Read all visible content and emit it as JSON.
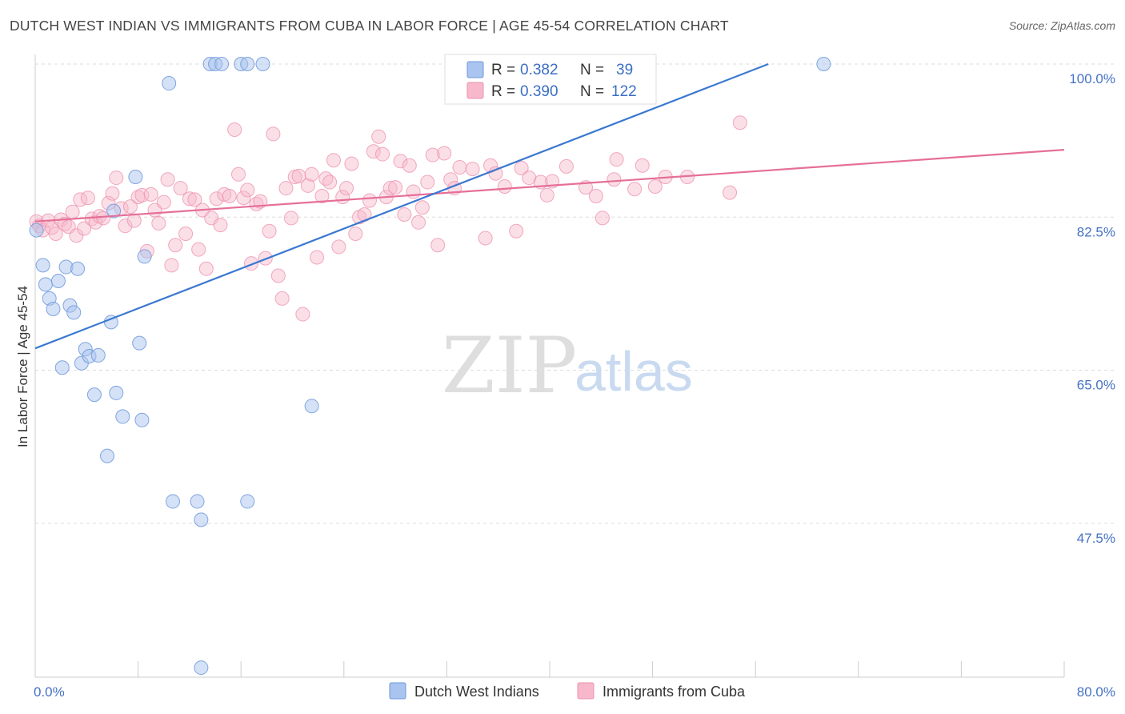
{
  "title": "DUTCH WEST INDIAN VS IMMIGRANTS FROM CUBA IN LABOR FORCE | AGE 45-54 CORRELATION CHART",
  "source": "Source: ZipAtlas.com",
  "watermark": {
    "zip": "ZIP",
    "atlas": "atlas"
  },
  "colors": {
    "blue_fill": "#a9c4ee",
    "blue_stroke": "#6d99dc",
    "blue_line": "#3a78d0",
    "pink_fill": "#f6b8ca",
    "pink_stroke": "#ee93b0",
    "pink_line": "#e56f98",
    "grid": "#dddddd",
    "tick_label": "#4472c4"
  },
  "legend": {
    "rows": [
      {
        "r_label": "R = ",
        "r_value": "0.382",
        "n_label": "N = ",
        "n_value": "39"
      },
      {
        "r_label": "R = ",
        "r_value": "0.390",
        "n_label": "N = ",
        "n_value": "122"
      }
    ]
  },
  "chart_data": {
    "type": "scatter",
    "xlabel": "",
    "ylabel": "In Labor Force | Age 45-54",
    "xlim": [
      0,
      80
    ],
    "ylim": [
      30,
      100
    ],
    "x_tick_labels": [
      "0.0%",
      "80.0%"
    ],
    "y_ticks": [
      {
        "value": 100.0,
        "label": "100.0%"
      },
      {
        "value": 82.5,
        "label": "82.5%"
      },
      {
        "value": 65.0,
        "label": "65.0%"
      },
      {
        "value": 47.5,
        "label": "47.5%"
      }
    ],
    "grid": true,
    "series": [
      {
        "name": "Dutch West Indians",
        "trend": {
          "x": [
            0,
            57
          ],
          "y": [
            67.5,
            100.0
          ]
        },
        "points": [
          [
            0.1,
            81.0
          ],
          [
            0.6,
            77.0
          ],
          [
            0.8,
            74.8
          ],
          [
            1.1,
            73.2
          ],
          [
            1.4,
            72.0
          ],
          [
            1.8,
            75.2
          ],
          [
            2.1,
            65.3
          ],
          [
            2.4,
            76.8
          ],
          [
            2.7,
            72.4
          ],
          [
            3.0,
            71.6
          ],
          [
            3.3,
            76.6
          ],
          [
            3.6,
            65.8
          ],
          [
            3.9,
            67.4
          ],
          [
            4.2,
            66.6
          ],
          [
            4.6,
            62.2
          ],
          [
            4.9,
            66.7
          ],
          [
            5.6,
            55.2
          ],
          [
            5.9,
            70.5
          ],
          [
            6.1,
            83.2
          ],
          [
            6.3,
            62.4
          ],
          [
            6.8,
            59.7
          ],
          [
            7.8,
            87.1
          ],
          [
            8.1,
            68.1
          ],
          [
            8.3,
            59.3
          ],
          [
            8.5,
            78.0
          ],
          [
            10.4,
            97.8
          ],
          [
            10.7,
            50.0
          ],
          [
            12.6,
            50.0
          ],
          [
            12.9,
            47.9
          ],
          [
            12.9,
            31.0
          ],
          [
            13.6,
            100.0
          ],
          [
            14.0,
            100.0
          ],
          [
            14.5,
            100.0
          ],
          [
            16.0,
            100.0
          ],
          [
            16.5,
            100.0
          ],
          [
            16.5,
            50.0
          ],
          [
            17.7,
            100.0
          ],
          [
            21.5,
            60.9
          ],
          [
            61.3,
            100.0
          ]
        ]
      },
      {
        "name": "Immigrants from Cuba",
        "trend": {
          "x": [
            0,
            80
          ],
          "y": [
            82.0,
            90.2
          ]
        },
        "points": [
          [
            0.1,
            82.0
          ],
          [
            0.3,
            81.5
          ],
          [
            0.6,
            81.0
          ],
          [
            1.0,
            82.1
          ],
          [
            1.3,
            81.3
          ],
          [
            1.6,
            80.6
          ],
          [
            2.0,
            82.2
          ],
          [
            2.3,
            81.7
          ],
          [
            2.6,
            81.4
          ],
          [
            2.9,
            83.1
          ],
          [
            3.2,
            80.4
          ],
          [
            3.5,
            84.5
          ],
          [
            3.8,
            81.2
          ],
          [
            4.1,
            84.7
          ],
          [
            4.4,
            82.3
          ],
          [
            4.7,
            81.9
          ],
          [
            5.0,
            82.6
          ],
          [
            5.3,
            82.4
          ],
          [
            5.7,
            84.1
          ],
          [
            6.0,
            85.2
          ],
          [
            6.3,
            87.0
          ],
          [
            6.7,
            83.5
          ],
          [
            7.0,
            81.5
          ],
          [
            7.4,
            83.7
          ],
          [
            7.7,
            82.1
          ],
          [
            8.0,
            84.8
          ],
          [
            8.3,
            85.0
          ],
          [
            8.7,
            78.6
          ],
          [
            9.0,
            85.1
          ],
          [
            9.3,
            83.3
          ],
          [
            9.6,
            81.8
          ],
          [
            10.0,
            84.2
          ],
          [
            10.3,
            86.8
          ],
          [
            10.6,
            77.0
          ],
          [
            10.9,
            79.3
          ],
          [
            11.3,
            85.8
          ],
          [
            11.7,
            80.6
          ],
          [
            12.0,
            84.6
          ],
          [
            12.4,
            84.5
          ],
          [
            12.7,
            78.8
          ],
          [
            13.0,
            83.3
          ],
          [
            13.3,
            76.6
          ],
          [
            13.7,
            82.4
          ],
          [
            14.1,
            84.6
          ],
          [
            14.4,
            81.6
          ],
          [
            14.7,
            85.1
          ],
          [
            15.1,
            84.9
          ],
          [
            15.5,
            92.5
          ],
          [
            15.8,
            87.4
          ],
          [
            16.2,
            84.7
          ],
          [
            16.5,
            85.6
          ],
          [
            16.8,
            77.2
          ],
          [
            17.2,
            84.0
          ],
          [
            17.5,
            84.3
          ],
          [
            17.9,
            77.8
          ],
          [
            18.2,
            80.9
          ],
          [
            18.5,
            92.0
          ],
          [
            18.9,
            75.8
          ],
          [
            19.2,
            73.2
          ],
          [
            19.5,
            85.8
          ],
          [
            19.9,
            82.4
          ],
          [
            20.2,
            87.1
          ],
          [
            20.5,
            87.2
          ],
          [
            20.8,
            71.4
          ],
          [
            21.2,
            86.1
          ],
          [
            21.5,
            87.4
          ],
          [
            21.9,
            77.9
          ],
          [
            22.3,
            84.9
          ],
          [
            22.6,
            86.9
          ],
          [
            22.9,
            86.5
          ],
          [
            23.2,
            89.0
          ],
          [
            23.6,
            79.1
          ],
          [
            23.9,
            84.8
          ],
          [
            24.2,
            85.8
          ],
          [
            24.6,
            88.6
          ],
          [
            24.9,
            80.6
          ],
          [
            25.2,
            82.5
          ],
          [
            25.6,
            82.8
          ],
          [
            26.0,
            84.4
          ],
          [
            26.3,
            90.0
          ],
          [
            26.7,
            91.7
          ],
          [
            27.0,
            89.7
          ],
          [
            27.3,
            84.8
          ],
          [
            27.6,
            85.8
          ],
          [
            28.0,
            85.9
          ],
          [
            28.4,
            88.9
          ],
          [
            28.7,
            82.8
          ],
          [
            29.1,
            88.4
          ],
          [
            29.4,
            85.4
          ],
          [
            29.8,
            81.9
          ],
          [
            30.1,
            83.6
          ],
          [
            30.5,
            86.5
          ],
          [
            30.9,
            89.6
          ],
          [
            31.3,
            79.3
          ],
          [
            31.8,
            89.8
          ],
          [
            32.3,
            86.8
          ],
          [
            32.6,
            85.8
          ],
          [
            33.0,
            88.2
          ],
          [
            34.0,
            88.0
          ],
          [
            35.0,
            80.1
          ],
          [
            35.4,
            88.4
          ],
          [
            35.8,
            87.5
          ],
          [
            36.5,
            86.0
          ],
          [
            37.4,
            80.9
          ],
          [
            37.8,
            88.1
          ],
          [
            38.4,
            87.0
          ],
          [
            39.3,
            86.5
          ],
          [
            39.8,
            85.0
          ],
          [
            40.2,
            86.6
          ],
          [
            41.3,
            88.3
          ],
          [
            42.8,
            85.9
          ],
          [
            43.6,
            84.9
          ],
          [
            44.1,
            82.4
          ],
          [
            45.0,
            86.8
          ],
          [
            45.2,
            89.1
          ],
          [
            46.6,
            85.7
          ],
          [
            47.2,
            88.4
          ],
          [
            48.2,
            86.0
          ],
          [
            49.0,
            87.1
          ],
          [
            50.7,
            87.1
          ],
          [
            54.0,
            85.3
          ],
          [
            54.8,
            93.3
          ]
        ]
      }
    ]
  },
  "bottom_legend": [
    {
      "label": "Dutch West Indians"
    },
    {
      "label": "Immigrants from Cuba"
    }
  ]
}
